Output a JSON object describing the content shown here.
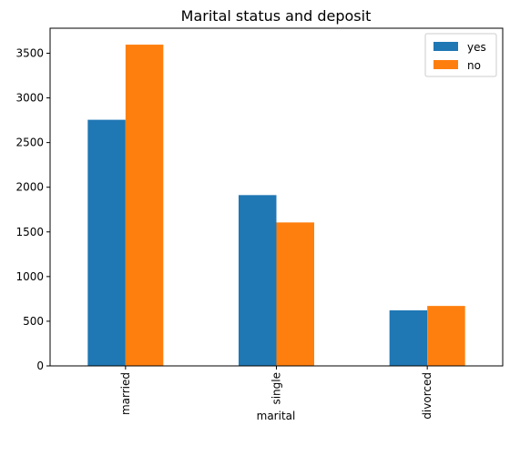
{
  "chart_data": {
    "type": "bar",
    "title": "Marital status and deposit",
    "xlabel": "marital",
    "ylabel": "",
    "categories": [
      "married",
      "single",
      "divorced"
    ],
    "series": [
      {
        "name": "yes",
        "values": [
          2755,
          1912,
          622
        ],
        "color": "#1f77b4"
      },
      {
        "name": "no",
        "values": [
          3596,
          1606,
          671
        ],
        "color": "#ff7f0e"
      }
    ],
    "ylim": [
      0,
      3780
    ],
    "yticks": [
      0,
      500,
      1000,
      1500,
      2000,
      2500,
      3000,
      3500
    ],
    "ytick_labels": [
      "0",
      "500",
      "1000",
      "1500",
      "2000",
      "2500",
      "3000",
      "3500"
    ],
    "legend": {
      "placement": "top-right",
      "entries": [
        "yes",
        "no"
      ]
    },
    "grid": false
  }
}
